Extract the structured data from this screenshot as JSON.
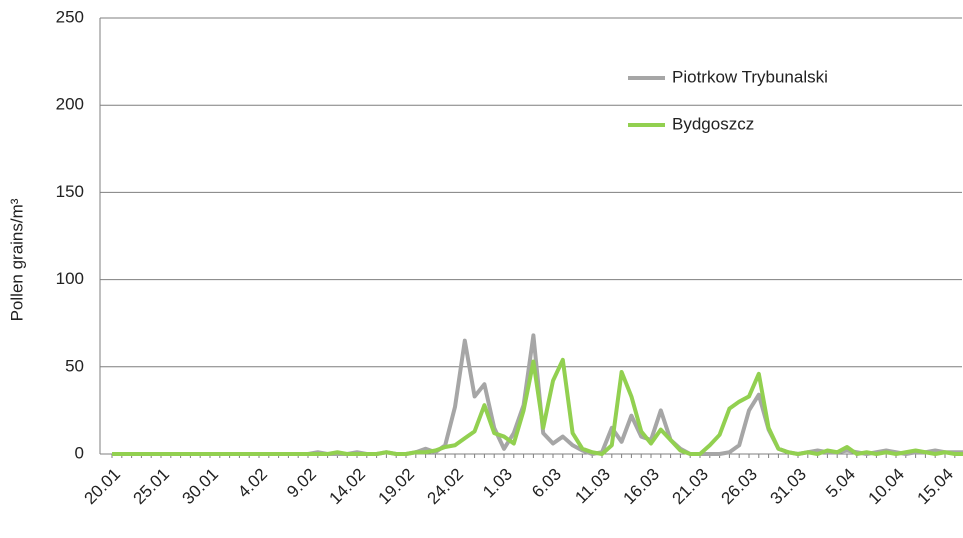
{
  "chart_data": {
    "type": "line",
    "y_label": "Pollen grains/m³",
    "categories": [
      "20.01",
      null,
      null,
      null,
      null,
      "25.01",
      null,
      null,
      null,
      null,
      "30.01",
      null,
      null,
      null,
      null,
      "4.02",
      null,
      null,
      null,
      null,
      "9.02",
      null,
      null,
      null,
      null,
      "14.02",
      null,
      null,
      null,
      null,
      "19.02",
      null,
      null,
      null,
      null,
      "24.02",
      null,
      null,
      null,
      null,
      "1.03",
      null,
      null,
      null,
      null,
      "6.03",
      null,
      null,
      null,
      null,
      "11.03",
      null,
      null,
      null,
      null,
      "16.03",
      null,
      null,
      null,
      null,
      "21.03",
      null,
      null,
      null,
      null,
      "26.03",
      null,
      null,
      null,
      null,
      "31.03",
      null,
      null,
      null,
      null,
      "5.04",
      null,
      null,
      null,
      null,
      "10.04",
      null,
      null,
      null,
      null,
      "15.04",
      null,
      null
    ],
    "series": [
      {
        "name": "Piotrkow Trybunalski",
        "color": "#a6a6a6",
        "values": [
          0,
          0,
          0,
          0,
          0,
          0,
          0,
          0,
          0,
          0,
          0,
          0,
          0,
          0,
          0,
          0,
          0,
          0,
          0,
          0,
          0,
          1,
          0,
          0,
          0,
          1,
          0,
          0,
          1,
          0,
          0,
          1,
          3,
          1,
          5,
          27,
          65,
          33,
          40,
          15,
          3,
          12,
          28,
          68,
          12,
          6,
          10,
          5,
          2,
          0,
          1,
          15,
          7,
          22,
          10,
          8,
          25,
          8,
          3,
          0,
          0,
          0,
          0,
          1,
          5,
          25,
          34,
          14,
          3,
          1,
          0,
          1,
          2,
          1,
          1,
          2,
          1,
          0,
          1,
          2,
          1,
          0,
          1,
          1,
          2,
          1,
          1,
          1
        ]
      },
      {
        "name": "Bydgoszcz",
        "color": "#92d050",
        "values": [
          0,
          0,
          0,
          0,
          0,
          0,
          0,
          0,
          0,
          0,
          0,
          0,
          0,
          0,
          0,
          0,
          0,
          0,
          0,
          0,
          0,
          0,
          0,
          1,
          0,
          0,
          0,
          0,
          1,
          0,
          0,
          1,
          1,
          2,
          4,
          5,
          9,
          13,
          28,
          12,
          10,
          6,
          25,
          53,
          15,
          42,
          54,
          12,
          3,
          1,
          0,
          5,
          47,
          33,
          13,
          6,
          14,
          8,
          2,
          0,
          0,
          5,
          11,
          26,
          30,
          33,
          46,
          15,
          3,
          1,
          0,
          1,
          0,
          2,
          1,
          4,
          0,
          1,
          0,
          1,
          0,
          1,
          2,
          1,
          0,
          1,
          0,
          0
        ]
      }
    ],
    "ylim": [
      0,
      250
    ],
    "yticks": [
      0,
      50,
      100,
      150,
      200,
      250
    ],
    "grid": true
  }
}
